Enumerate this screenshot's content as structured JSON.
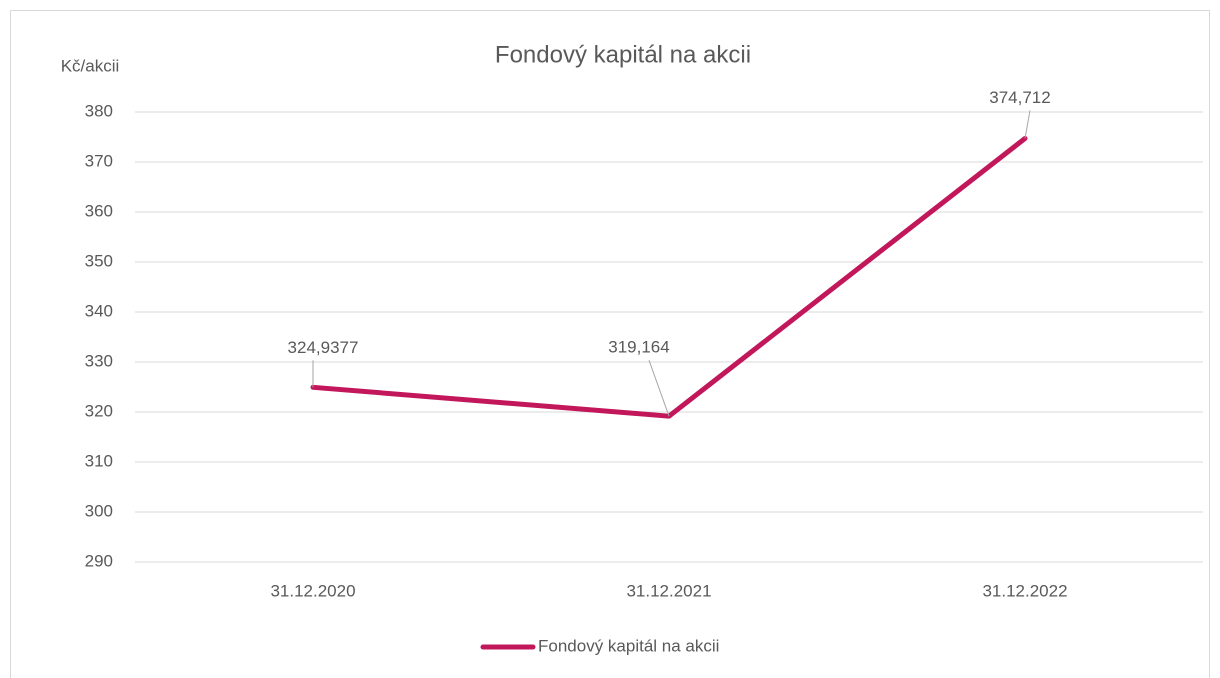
{
  "chart_data": {
    "type": "line",
    "title": "Fondový kapitál na akcii",
    "y_label": "Kč/akcii",
    "categories": [
      "31.12.2020",
      "31.12.2021",
      "31.12.2022"
    ],
    "series": [
      {
        "name": "Fondový kapitál na akcii",
        "color": "#c2185b",
        "values": [
          324.9377,
          319.164,
          374.712
        ],
        "value_labels": [
          "324,9377",
          "319,164",
          "374,712"
        ]
      }
    ],
    "ylim": [
      290,
      380
    ],
    "yticks": [
      290,
      300,
      310,
      320,
      330,
      340,
      350,
      360,
      370,
      380
    ],
    "grid": true,
    "legend": "bottom"
  }
}
